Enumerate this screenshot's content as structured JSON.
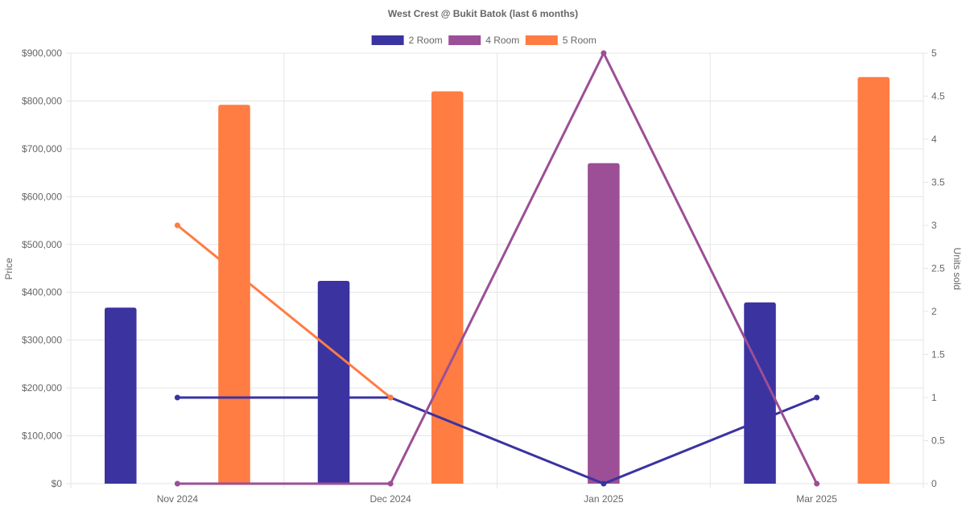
{
  "chart_data": {
    "type": "bar",
    "title": "West Crest @ Bukit Batok (last 6 months)",
    "categories": [
      "Nov 2024",
      "Dec 2024",
      "Jan 2025",
      "Mar 2025"
    ],
    "ylabel": "Price",
    "y2label": "Units sold",
    "ylim": [
      0,
      900000
    ],
    "y2lim": [
      0,
      5
    ],
    "y_ticks": [
      "$0",
      "$100,000",
      "$200,000",
      "$300,000",
      "$400,000",
      "$500,000",
      "$600,000",
      "$700,000",
      "$800,000",
      "$900,000"
    ],
    "y2_ticks": [
      "0",
      "0.5",
      "1",
      "1.5",
      "2",
      "2.5",
      "3",
      "3.5",
      "4",
      "4.5",
      "5"
    ],
    "grid": true,
    "legend_position": "top",
    "series": [
      {
        "name": "2 Room",
        "color": "#3a33a0",
        "price": [
          368000,
          424000,
          null,
          379000
        ],
        "units": [
          1,
          1,
          0,
          1
        ]
      },
      {
        "name": "4 Room",
        "color": "#9c4f96",
        "price": [
          null,
          null,
          670000,
          null
        ],
        "units": [
          0,
          0,
          5,
          0
        ]
      },
      {
        "name": "5 Room",
        "color": "#ff7c43",
        "price": [
          792000,
          820000,
          null,
          850000
        ],
        "units": [
          3,
          1,
          null,
          null
        ]
      }
    ]
  }
}
